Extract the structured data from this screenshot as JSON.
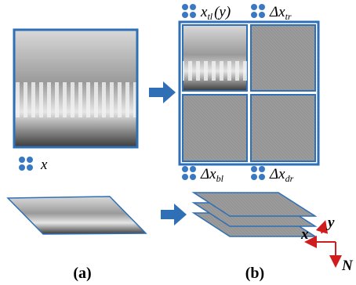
{
  "labels": {
    "input": "x",
    "tl": {
      "main": "x",
      "sub": "tl",
      "suffix": "(y)"
    },
    "tr": {
      "main": "Δx",
      "sub": "tr"
    },
    "bl": {
      "main": "Δx",
      "sub": "bl"
    },
    "dr": {
      "main": "Δx",
      "sub": "dr"
    },
    "axes": {
      "x": "x",
      "y": "y",
      "n": "N"
    },
    "caption_a": "(a)",
    "caption_b": "(b)"
  }
}
